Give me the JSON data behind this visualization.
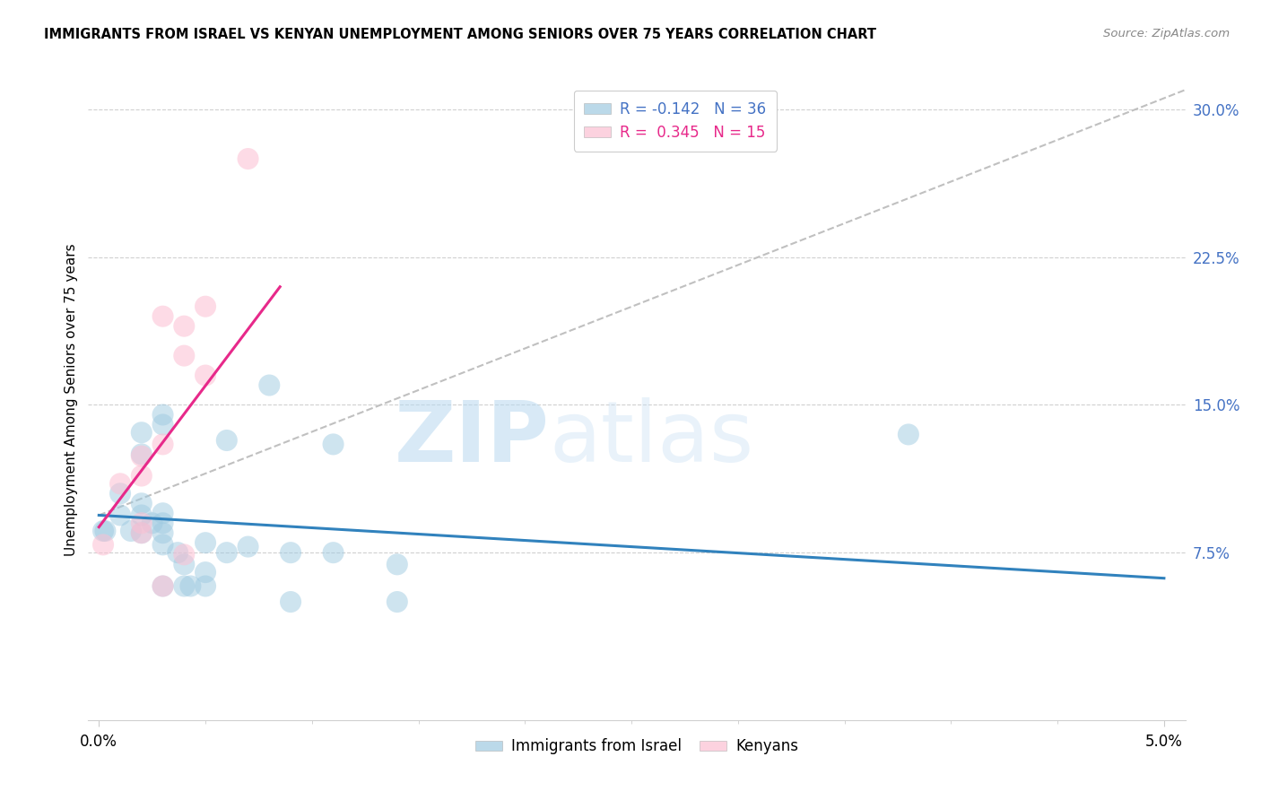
{
  "title": "IMMIGRANTS FROM ISRAEL VS KENYAN UNEMPLOYMENT AMONG SENIORS OVER 75 YEARS CORRELATION CHART",
  "source": "Source: ZipAtlas.com",
  "ylabel": "Unemployment Among Seniors over 75 years",
  "xlim": [
    -0.0005,
    0.051
  ],
  "ylim": [
    -0.01,
    0.315
  ],
  "ytick_vals": [
    0.075,
    0.15,
    0.225,
    0.3
  ],
  "ytick_labels": [
    "7.5%",
    "15.0%",
    "22.5%",
    "30.0%"
  ],
  "xtick_vals": [
    0.0,
    0.05
  ],
  "xtick_labels": [
    "0.0%",
    "5.0%"
  ],
  "blue_color": "#9ecae1",
  "pink_color": "#fcbfd2",
  "blue_line_color": "#3182bd",
  "pink_line_color": "#e7298a",
  "dashed_line_color": "#c0c0c0",
  "right_axis_color": "#4472c4",
  "watermark_zip": "ZIP",
  "watermark_atlas": "atlas",
  "blue_scatter": [
    [
      0.0002,
      0.086
    ],
    [
      0.0003,
      0.086
    ],
    [
      0.001,
      0.105
    ],
    [
      0.001,
      0.094
    ],
    [
      0.0015,
      0.086
    ],
    [
      0.002,
      0.136
    ],
    [
      0.002,
      0.125
    ],
    [
      0.002,
      0.1
    ],
    [
      0.002,
      0.094
    ],
    [
      0.0025,
      0.09
    ],
    [
      0.002,
      0.085
    ],
    [
      0.003,
      0.145
    ],
    [
      0.003,
      0.14
    ],
    [
      0.003,
      0.095
    ],
    [
      0.003,
      0.09
    ],
    [
      0.003,
      0.085
    ],
    [
      0.003,
      0.079
    ],
    [
      0.003,
      0.058
    ],
    [
      0.0037,
      0.075
    ],
    [
      0.004,
      0.069
    ],
    [
      0.004,
      0.058
    ],
    [
      0.0043,
      0.058
    ],
    [
      0.005,
      0.08
    ],
    [
      0.005,
      0.065
    ],
    [
      0.005,
      0.058
    ],
    [
      0.006,
      0.132
    ],
    [
      0.006,
      0.075
    ],
    [
      0.007,
      0.078
    ],
    [
      0.008,
      0.16
    ],
    [
      0.009,
      0.075
    ],
    [
      0.009,
      0.05
    ],
    [
      0.011,
      0.13
    ],
    [
      0.011,
      0.075
    ],
    [
      0.014,
      0.069
    ],
    [
      0.014,
      0.05
    ],
    [
      0.038,
      0.135
    ]
  ],
  "pink_scatter": [
    [
      0.0002,
      0.079
    ],
    [
      0.001,
      0.11
    ],
    [
      0.002,
      0.124
    ],
    [
      0.002,
      0.114
    ],
    [
      0.002,
      0.09
    ],
    [
      0.002,
      0.085
    ],
    [
      0.003,
      0.195
    ],
    [
      0.003,
      0.13
    ],
    [
      0.003,
      0.058
    ],
    [
      0.004,
      0.19
    ],
    [
      0.004,
      0.175
    ],
    [
      0.004,
      0.074
    ],
    [
      0.005,
      0.2
    ],
    [
      0.005,
      0.165
    ],
    [
      0.007,
      0.275
    ]
  ],
  "blue_trendline_x": [
    0.0,
    0.05
  ],
  "blue_trendline_y": [
    0.094,
    0.062
  ],
  "pink_trendline_x": [
    0.0,
    0.0085
  ],
  "pink_trendline_y": [
    0.088,
    0.21
  ],
  "dashed_trendline_x": [
    0.0,
    0.051
  ],
  "dashed_trendline_y": [
    0.094,
    0.31
  ],
  "legend1_label": "R = -0.142   N = 36",
  "legend2_label": "R =  0.345   N = 15",
  "legend1_color": "#4472c4",
  "legend2_color": "#e7298a",
  "bottom_legend1": "Immigrants from Israel",
  "bottom_legend2": "Kenyans"
}
